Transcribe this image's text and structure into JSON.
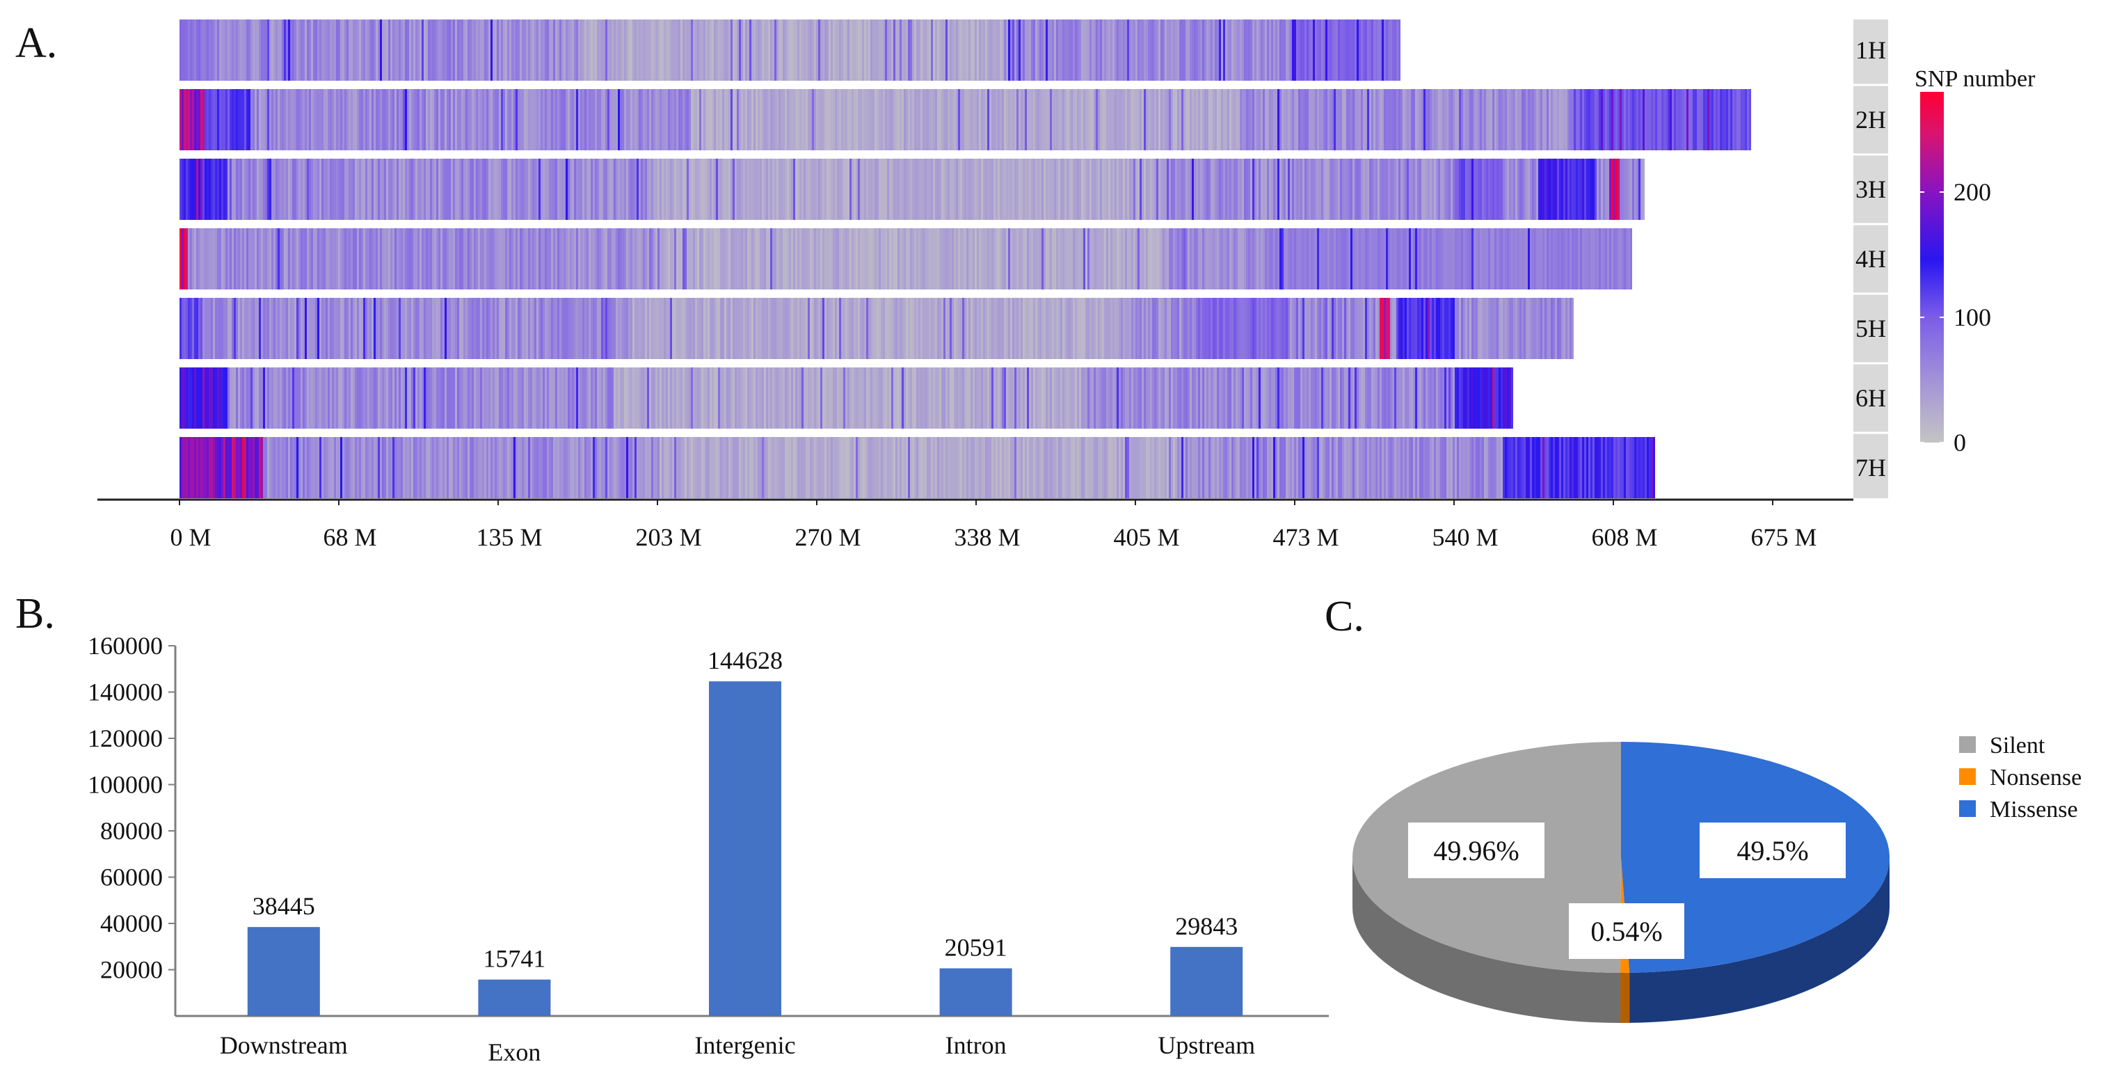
{
  "panels": {
    "a": "A.",
    "b": "B.",
    "c": "C."
  },
  "colors": {
    "gray": "#c4c4c4",
    "violet": "#8e74dc",
    "blue": "#2a16f0",
    "magenta": "#c01488",
    "red": "#ff0033",
    "bar": "#4472c4",
    "silent": "#a6a6a6",
    "nonsense": "#ff8c00",
    "missense": "#2f6fd6"
  },
  "chart_data": [
    {
      "id": "A",
      "type": "heatmap",
      "title": "",
      "xlabel": "",
      "ylabel": "",
      "x_unit": "M",
      "xlim": [
        0,
        675
      ],
      "xticks": [
        "0 M",
        "68 M",
        "135 M",
        "203 M",
        "270 M",
        "338 M",
        "405 M",
        "473 M",
        "540 M",
        "608 M",
        "675 M"
      ],
      "chromosomes": [
        {
          "name": "1H",
          "length": 517,
          "hotspots": [
            [
              0,
              15,
              85
            ],
            [
              470,
              517,
              95
            ]
          ]
        },
        {
          "name": "2H",
          "length": 665,
          "hotspots": [
            [
              0,
              10,
              230
            ],
            [
              10,
              30,
              130
            ],
            [
              590,
              665,
              115
            ]
          ]
        },
        {
          "name": "3H",
          "length": 620,
          "hotspots": [
            [
              0,
              20,
              145
            ],
            [
              540,
              560,
              110
            ],
            [
              575,
              600,
              150
            ],
            [
              605,
              610,
              260
            ]
          ]
        },
        {
          "name": "4H",
          "length": 615,
          "hotspots": [
            [
              0,
              3,
              260
            ],
            [
              460,
              615,
              75
            ]
          ]
        },
        {
          "name": "5H",
          "length": 590,
          "hotspots": [
            [
              0,
              8,
              120
            ],
            [
              430,
              470,
              100
            ],
            [
              508,
              512,
              245
            ],
            [
              515,
              540,
              140
            ]
          ]
        },
        {
          "name": "6H",
          "length": 565,
          "hotspots": [
            [
              0,
              20,
              175
            ],
            [
              540,
              565,
              160
            ]
          ]
        },
        {
          "name": "7H",
          "length": 625,
          "hotspots": [
            [
              0,
              35,
              215
            ],
            [
              560,
              625,
              140
            ]
          ]
        }
      ],
      "colorbar": {
        "title": "SNP number",
        "ticks": [
          "0",
          "100",
          "200"
        ],
        "min": 0,
        "max": 280
      }
    },
    {
      "id": "B",
      "type": "bar",
      "title": "",
      "xlabel": "",
      "ylabel": "",
      "categories": [
        "Downstream",
        "Exon",
        "Intergenic",
        "Intron",
        "Upstream"
      ],
      "values": [
        38445,
        15741,
        144628,
        20591,
        29843
      ],
      "value_labels": [
        "38445",
        "15741",
        "144628",
        "20591",
        "29843"
      ],
      "ylim": [
        0,
        160000
      ],
      "yticks": [
        "20000",
        "40000",
        "60000",
        "80000",
        "100000",
        "120000",
        "140000",
        "160000"
      ]
    },
    {
      "id": "C",
      "type": "pie",
      "title": "",
      "labels": [
        "Silent",
        "Nonsense",
        "Missense"
      ],
      "values": [
        49.96,
        0.54,
        49.5
      ],
      "value_labels": [
        "49.96%",
        "0.54%",
        "49.5%"
      ],
      "legend": [
        "Silent",
        "Nonsense",
        "Missense"
      ],
      "legend_position": "top-right"
    }
  ]
}
